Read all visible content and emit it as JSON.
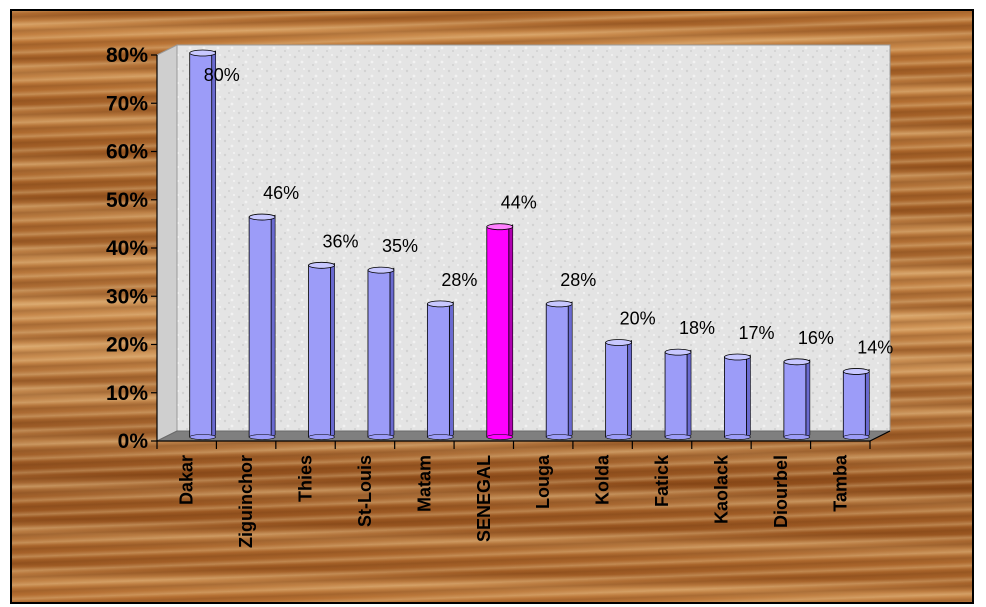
{
  "chart_data": {
    "type": "bar",
    "categories": [
      "Dakar",
      "Ziguinchor",
      "Thies",
      "St-Louis",
      "Matam",
      "SENEGAL",
      "Louga",
      "Kolda",
      "Fatick",
      "Kaolack",
      "Diourbel",
      "Tamba"
    ],
    "values": [
      80,
      46,
      36,
      35,
      28,
      44,
      28,
      20,
      18,
      17,
      16,
      14
    ],
    "data_labels": [
      "80%",
      "46%",
      "36%",
      "35%",
      "28%",
      "44%",
      "28%",
      "20%",
      "18%",
      "17%",
      "16%",
      "14%"
    ],
    "y_tick_labels": [
      "0%",
      "10%",
      "20%",
      "30%",
      "40%",
      "50%",
      "60%",
      "70%",
      "80%"
    ],
    "ylim": [
      0,
      80
    ],
    "title": "",
    "xlabel": "",
    "ylabel": "",
    "grid": false,
    "legend": "none",
    "highlight_category": "SENEGAL",
    "colors": {
      "bar": "#9c9cf8",
      "bar_side": "#6a6ad0",
      "bar_top": "#c8c8ff",
      "highlight": "#ff00ff",
      "highlight_side": "#b000b0",
      "highlight_top": "#ff80ff",
      "wall": "#e6e6e6",
      "floor": "#808080",
      "title_text": "#1a1a9c"
    }
  }
}
